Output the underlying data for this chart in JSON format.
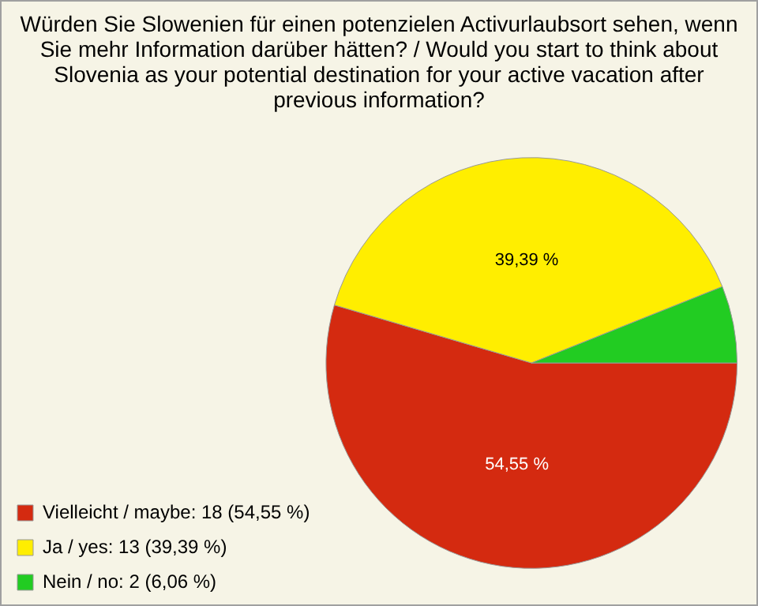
{
  "chart_data": {
    "type": "pie",
    "title": "Würden Sie Slowenien für einen potenzielen Activurlaubsort sehen, wenn Sie mehr Information darüber hätten? / Would you start to think about Slovenia as your potential destination for your active vacation after previous information?",
    "categories": [
      "Vielleicht / maybe: 18 (54,55 %)",
      "Ja / yes: 13 (39,39 %)",
      "Nein / no: 2 (6,06 %)"
    ],
    "values": [
      54.55,
      39.39,
      6.06
    ],
    "colors": [
      "#d42a10",
      "#ffee00",
      "#22cc22"
    ],
    "value_labels": [
      "54,55 %",
      "39,39 %",
      null
    ],
    "legend": "bottom left"
  }
}
